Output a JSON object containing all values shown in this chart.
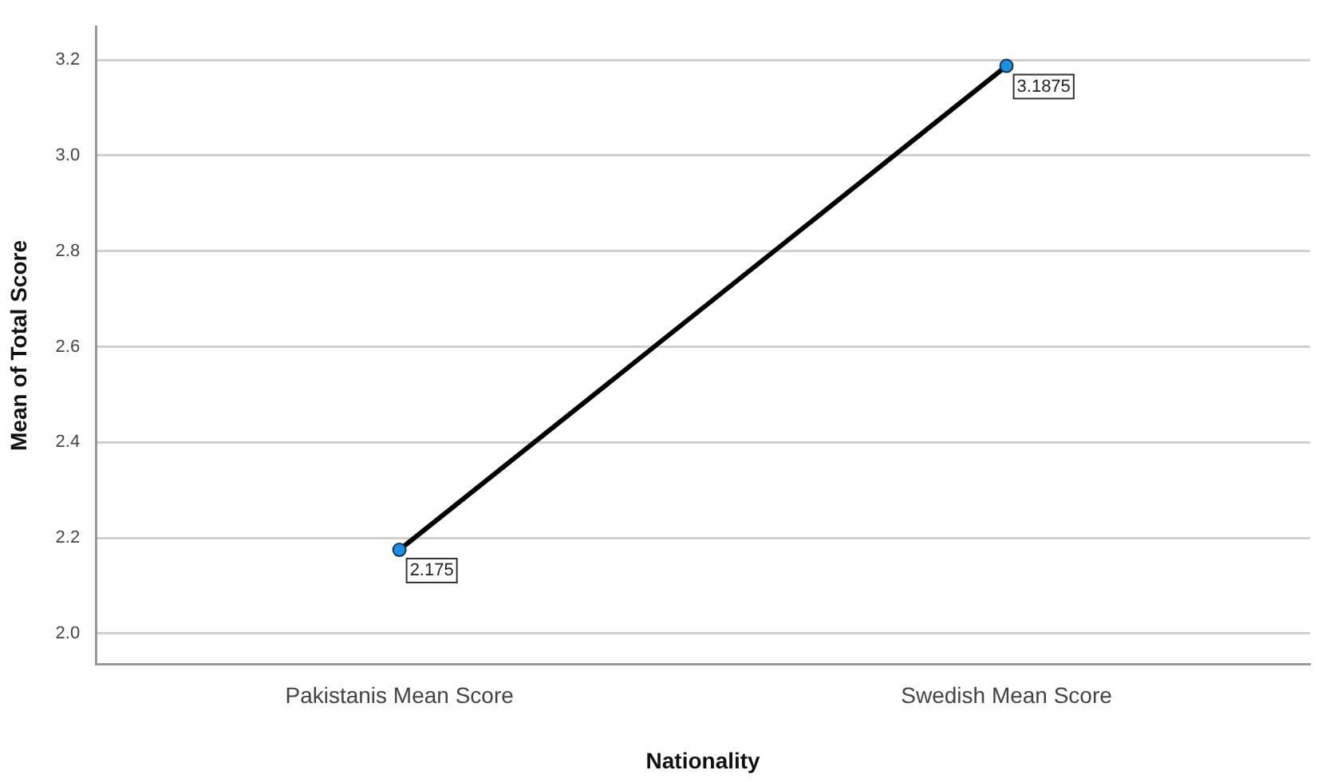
{
  "chart_data": {
    "type": "line",
    "xlabel": "Nationality",
    "ylabel": "Mean of Total Score",
    "categories": [
      "Pakistanis Mean Score",
      "Swedish Mean Score"
    ],
    "series": [
      {
        "color": "#000000",
        "values": [
          2.175,
          3.1875
        ]
      }
    ],
    "marker": "circle",
    "line_style": "solid",
    "data_labels": true,
    "grid": "y",
    "legend": false,
    "ylim": [
      1.935,
      3.27
    ],
    "yticks": [
      {
        "value": 2.0,
        "label": "2.0"
      },
      {
        "value": 2.2,
        "label": "2.2"
      },
      {
        "value": 2.4,
        "label": "2.4"
      },
      {
        "value": 2.6,
        "label": "2.6"
      },
      {
        "value": 2.8,
        "label": "2.8"
      },
      {
        "value": 3.0,
        "label": "3.0"
      },
      {
        "value": 3.2,
        "label": "3.2"
      }
    ]
  }
}
